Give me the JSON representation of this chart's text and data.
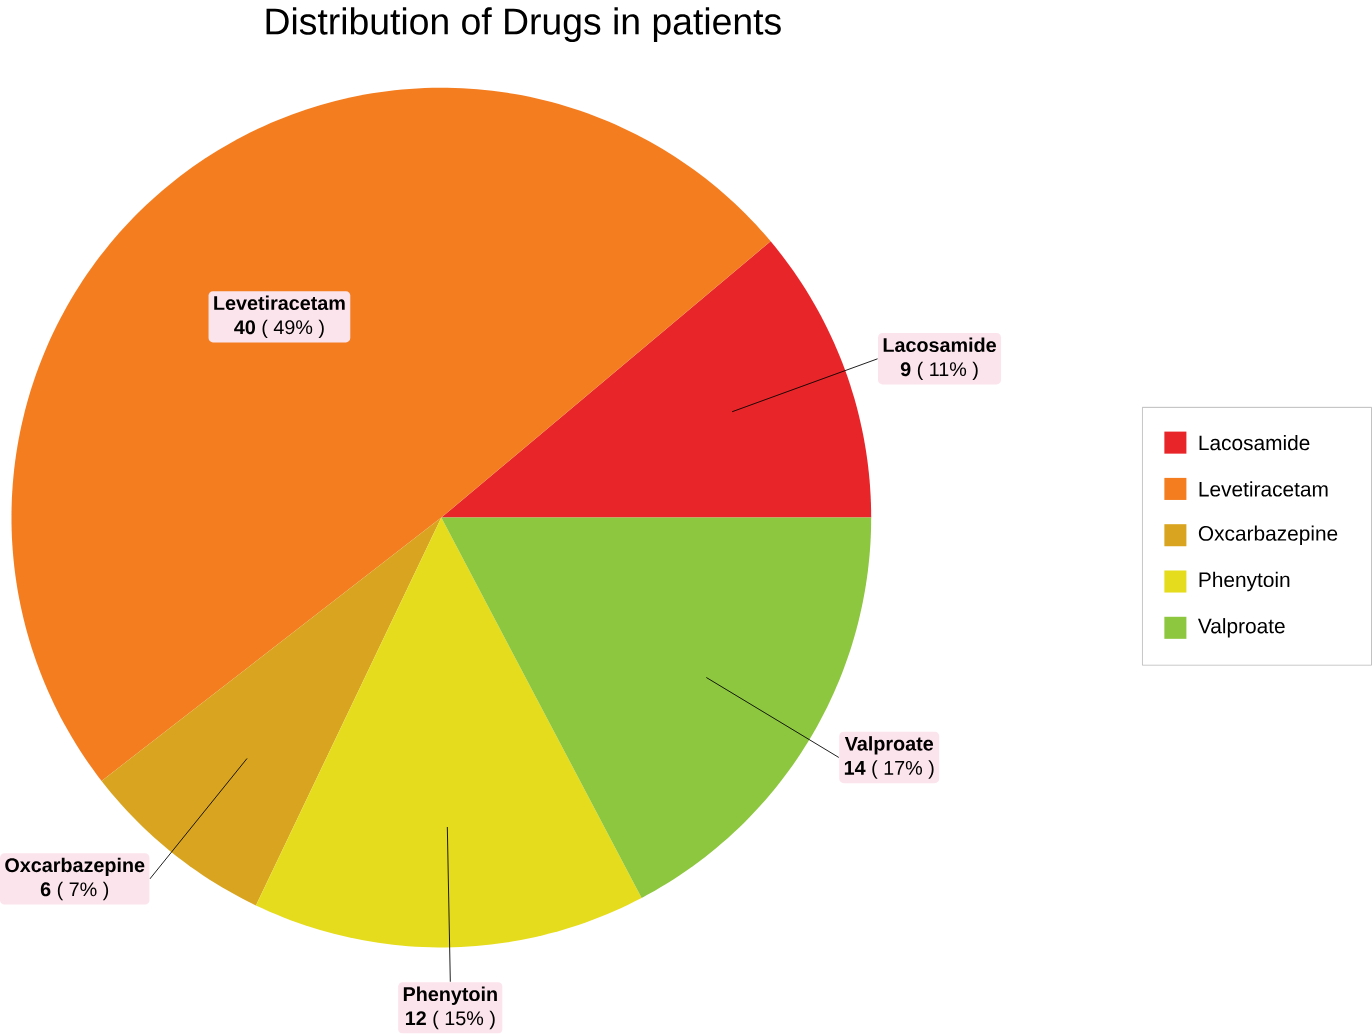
{
  "chart_data": {
    "type": "pie",
    "title": "Distribution of Drugs in patients",
    "categories": [
      "Lacosamide",
      "Levetiracetam",
      "Oxcarbazepine",
      "Phenytoin",
      "Valproate"
    ],
    "values": [
      9,
      40,
      6,
      12,
      14
    ],
    "value_labels": [
      "**9** ( 11% )",
      "**40** ( 49% )",
      "**6** ( 7% )",
      "**12** ( 15% )",
      "**14** ( 17% )"
    ],
    "colors": [
      "#e8262a",
      "#f47d20",
      "#d9a520",
      "#e6dc1e",
      "#8dc63f"
    ],
    "legend": "right"
  }
}
